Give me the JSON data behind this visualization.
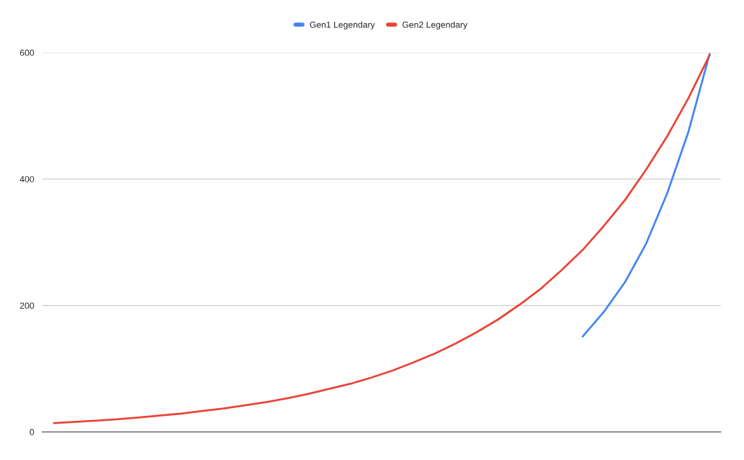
{
  "chart_data": {
    "type": "line",
    "categories": [
      null,
      null,
      null,
      null,
      null,
      null,
      null,
      null,
      null,
      null,
      null,
      null,
      null,
      null,
      null,
      null,
      null,
      null,
      null,
      null,
      null,
      null,
      null,
      null,
      null,
      null,
      null,
      null,
      null,
      null,
      null,
      null
    ],
    "series": [
      {
        "name": "Gen1 Legendary",
        "color": "#4285f4",
        "values": [
          null,
          null,
          null,
          null,
          null,
          null,
          null,
          null,
          null,
          null,
          null,
          null,
          null,
          null,
          null,
          null,
          null,
          null,
          null,
          null,
          null,
          null,
          null,
          null,
          null,
          151,
          190,
          237,
          298,
          378,
          475,
          598
        ]
      },
      {
        "name": "Gen2 Legendary",
        "color": "#ea4335",
        "values": [
          14,
          16,
          18,
          20,
          23,
          26,
          29,
          33,
          37,
          42,
          47,
          53,
          60,
          68,
          76,
          86,
          97,
          110,
          124,
          140,
          158,
          178,
          201,
          226,
          256,
          288,
          326,
          367,
          415,
          468,
          528,
          596
        ]
      }
    ],
    "ylim": [
      0,
      600
    ],
    "yticks": [
      0,
      200,
      400,
      600
    ],
    "grid": "y",
    "legend": "top",
    "marker": "none",
    "line_style": "solid",
    "tick_labels": "y"
  }
}
